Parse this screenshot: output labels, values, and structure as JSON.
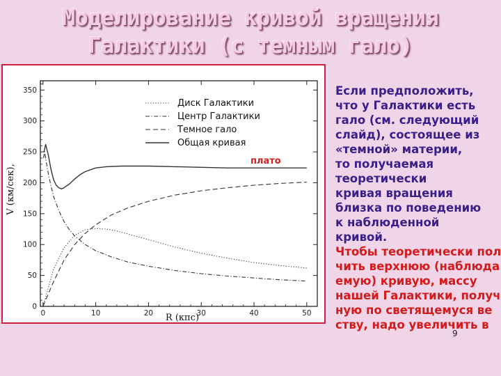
{
  "title_lines": [
    "Моделирование кривой вращения",
    "Галактики (с темным гало)"
  ],
  "side_text": {
    "paragraph1": [
      "Если предположить,",
      "что у Галактики есть",
      "гало (см. следующий",
      "слайд), состоящее из",
      "«темной» материи,",
      "то получаемая",
      "теоретически",
      "кривая вращения",
      "близка по поведению",
      "к наблюденной",
      "кривой."
    ],
    "paragraph2": [
      "Чтобы теоретически пол",
      "чить верхнюю (наблюда",
      "емую) кривую, массу",
      "нашей Галактики, получ",
      "ную по светящемуся ве",
      "ству, надо увеличить в"
    ]
  },
  "page_number": "9",
  "chart_data": {
    "type": "line",
    "title": "",
    "xlabel": "R (кпс)",
    "ylabel": "V (км/сек),",
    "x_ticks": [
      0,
      10,
      20,
      30,
      40,
      50
    ],
    "y_ticks": [
      0,
      50,
      100,
      150,
      200,
      250,
      300,
      350
    ],
    "xlim": [
      -0.5,
      52
    ],
    "ylim": [
      0,
      365
    ],
    "annotation": "плато",
    "legend_position": "top-center",
    "series": [
      {
        "name": "Диск Галактики",
        "style": "dotted",
        "x": [
          0,
          2,
          4,
          6,
          8,
          10,
          12,
          14,
          17,
          20,
          25,
          30,
          35,
          40,
          45,
          50
        ],
        "y": [
          0,
          60,
          95,
          115,
          124,
          126,
          125,
          122,
          115,
          108,
          96,
          86,
          78,
          71,
          66,
          62
        ]
      },
      {
        "name": "Центр Галактики",
        "style": "dash-dot",
        "x": [
          0.1,
          0.3,
          0.6,
          1,
          1.5,
          2,
          3,
          4,
          5,
          6,
          8,
          10,
          13,
          16,
          20,
          25,
          30,
          35,
          40,
          45,
          50
        ],
        "y": [
          240,
          250,
          235,
          215,
          195,
          178,
          155,
          137,
          124,
          114,
          100,
          90,
          80,
          72,
          65,
          58,
          53,
          49,
          46,
          43,
          41
        ]
      },
      {
        "name": "Темное гало",
        "style": "dashed",
        "x": [
          0,
          2,
          4,
          6,
          8,
          10,
          13,
          16,
          20,
          25,
          30,
          35,
          40,
          45,
          50
        ],
        "y": [
          0,
          40,
          75,
          100,
          118,
          132,
          148,
          159,
          170,
          180,
          187,
          192,
          196,
          199,
          201
        ]
      },
      {
        "name": "Общая кривая",
        "style": "solid",
        "x": [
          0.2,
          0.5,
          1,
          1.5,
          2,
          2.5,
          3,
          3.5,
          4,
          5,
          6,
          7,
          8,
          10,
          12,
          15,
          20,
          25,
          30,
          35,
          40,
          45,
          50
        ],
        "y": [
          250,
          262,
          245,
          222,
          205,
          196,
          192,
          190,
          192,
          198,
          206,
          213,
          218,
          224,
          226,
          227,
          227,
          226,
          225,
          224,
          224,
          224,
          224
        ]
      }
    ]
  }
}
